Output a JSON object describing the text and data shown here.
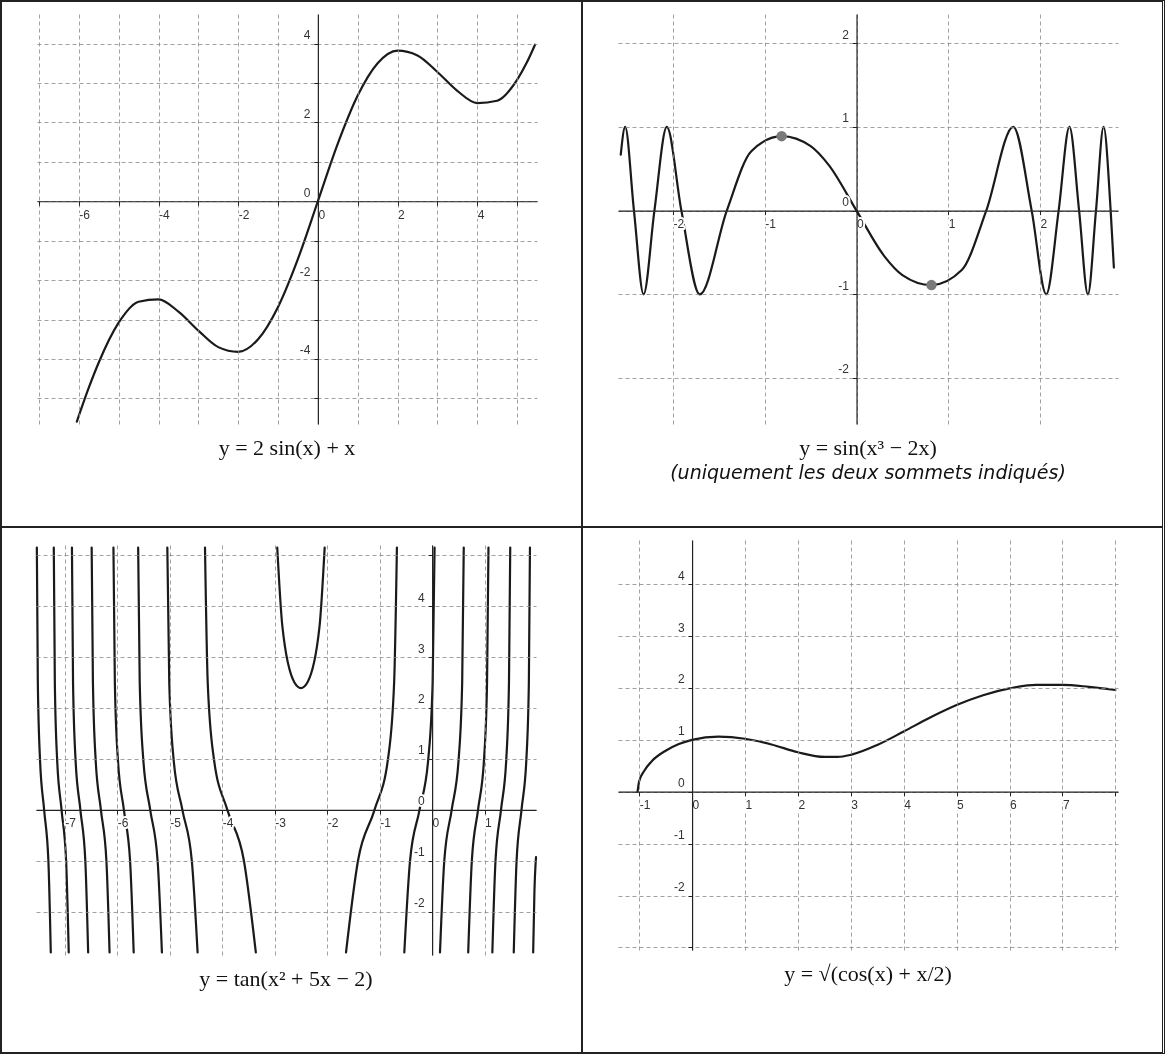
{
  "chart_data": [
    {
      "type": "line",
      "title": "y = 2 sin(x) + x",
      "grid": true,
      "xlim": [
        -7.05,
        5.5
      ],
      "ylim": [
        -5.65,
        4.75
      ],
      "xticks": [
        {
          "value": -7,
          "label": null
        },
        -6,
        {
          "value": -5,
          "label": null
        },
        -4,
        {
          "value": -3,
          "label": null
        },
        -2,
        {
          "value": -1,
          "label": null
        },
        0,
        {
          "value": 1,
          "label": null
        },
        2,
        {
          "value": 3,
          "label": null
        },
        4,
        {
          "value": 5,
          "label": null
        }
      ],
      "yticks": [
        {
          "value": -5,
          "label": null
        },
        -4,
        {
          "value": -3,
          "label": null
        },
        -2,
        {
          "value": -1,
          "label": null
        },
        0,
        {
          "value": 1,
          "label": null
        },
        2,
        {
          "value": 3,
          "label": null
        },
        4
      ],
      "series": [
        {
          "color": "#1a1a1a",
          "x": [
            -6.05,
            -5.75,
            -5.5,
            -5,
            -4.5,
            -4,
            -3.5,
            -3,
            -2.5,
            -2,
            -1.5,
            -1,
            -0.5,
            0,
            0.5,
            1,
            1.5,
            2,
            2.5,
            3,
            3.5,
            4,
            4.5,
            5,
            5.25,
            5.45
          ],
          "values": [
            -5.59,
            -4.73,
            -4.09,
            -3.08,
            -2.55,
            -2.49,
            -2.8,
            -3.28,
            -3.7,
            -3.82,
            -3.5,
            -2.68,
            -1.46,
            0,
            1.46,
            2.68,
            3.5,
            3.82,
            3.7,
            3.28,
            2.8,
            2.49,
            2.55,
            3.08,
            3.53,
            3.97
          ]
        }
      ]
    },
    {
      "type": "line",
      "title": "y = sin(x³ − 2x)",
      "subtitle": "(uniquement les deux sommets indiqués)",
      "grid": true,
      "xlim": [
        -2.6,
        2.85
      ],
      "ylim": [
        -2.55,
        2.35
      ],
      "xticks": [
        -2,
        -1,
        0,
        1,
        2
      ],
      "yticks": [
        -2,
        -1,
        0,
        1,
        2
      ],
      "series": [
        {
          "type": "line",
          "color": "#1a1a1a",
          "x": [
            -2.57,
            -2.522,
            -2.426,
            -2.321,
            -2.203,
            -2.068,
            -1.909,
            -1.709,
            -1.414,
            -1.147,
            -0.8165,
            -0.5,
            -0.3,
            0,
            0.3,
            0.5,
            0.8165,
            1.147,
            1.414,
            1.709,
            1.909,
            2.068,
            2.203,
            2.321,
            2.426,
            2.522,
            2.61,
            2.693,
            2.77,
            2.805
          ],
          "values": [
            0.67,
            1,
            0,
            -1,
            0,
            1,
            0,
            -1,
            0,
            0.71,
            0.89,
            0.77,
            0.54,
            0,
            -0.54,
            -0.77,
            -0.89,
            -0.71,
            0,
            1,
            0,
            -1,
            0,
            1,
            0,
            -1,
            0,
            1,
            0,
            -0.68
          ]
        },
        {
          "type": "scatter",
          "marker": "circle",
          "color": "#7a7a7a",
          "x": [
            -0.8165,
            0.8165
          ],
          "values": [
            0.89,
            -0.89
          ]
        }
      ]
    },
    {
      "type": "line",
      "title": "y = tan(x² + 5x − 2)",
      "grid": true,
      "xlim": [
        -7.55,
        1.98
      ],
      "ylim": [
        -2.85,
        5.2
      ],
      "xticks": [
        -7,
        -6,
        -5,
        -4,
        -3,
        -2,
        -1,
        0,
        1
      ],
      "yticks": [
        -2,
        -1,
        0,
        1,
        2,
        3,
        4,
        {
          "value": 5,
          "label": null
        }
      ],
      "series": [
        {
          "color": "#1a1a1a",
          "x": [
            -7.268,
            -7.314,
            -7.395,
            -7.474,
            -7.515,
            -7.534
          ],
          "values": [
            -2.8,
            -1,
            0,
            1,
            2.5,
            5.15
          ]
        },
        {
          "color": "#1a1a1a",
          "x": [
            -6.926,
            -6.976,
            -7.063,
            -7.148,
            -7.191,
            -7.211
          ],
          "values": [
            -2.8,
            -1,
            0,
            1,
            2.5,
            5.15
          ]
        },
        {
          "color": "#1a1a1a",
          "x": [
            -6.556,
            -6.61,
            -6.704,
            -6.797,
            -6.844,
            -6.865
          ],
          "values": [
            -2.8,
            -1,
            0,
            1,
            2.5,
            5.15
          ]
        },
        {
          "color": "#1a1a1a",
          "x": [
            -6.148,
            -6.208,
            -6.313,
            -6.414,
            -6.465,
            -6.489
          ],
          "values": [
            -2.8,
            -1,
            0,
            1,
            2.5,
            5.15
          ]
        },
        {
          "color": "#1a1a1a",
          "x": [
            -5.688,
            -5.757,
            -5.875,
            -5.99,
            -6.047,
            -6.074
          ],
          "values": [
            -2.8,
            -1,
            0,
            1,
            2.5,
            5.15
          ]
        },
        {
          "color": "#1a1a1a",
          "x": [
            -5.15,
            -5.232,
            -5.373,
            -5.506,
            -5.573,
            -5.603
          ],
          "values": [
            -2.8,
            -1,
            0,
            1,
            2.5,
            5.15
          ]
        },
        {
          "color": "#1a1a1a",
          "x": [
            -4.47,
            -4.58,
            -4.76,
            -4.928,
            -5.01,
            -5.047
          ],
          "values": [
            -2.8,
            -1,
            0,
            1,
            2.5,
            5.15
          ]
        },
        {
          "color": "#1a1a1a",
          "x": [
            -3.36,
            -3.587,
            -3.903,
            -4.159,
            -4.277,
            -4.329
          ],
          "values": [
            -2.8,
            -1,
            0,
            1,
            2.5,
            5.15
          ]
        },
        {
          "color": "#1a1a1a",
          "x": [
            -2.952,
            -2.854,
            -2.624,
            -2.5,
            -2.377,
            -2.146,
            -2.048
          ],
          "values": [
            5.15,
            3.6,
            2.5,
            2.39,
            2.5,
            3.6,
            5.15
          ]
        },
        {
          "color": "#1a1a1a",
          "x": [
            -1.641,
            -1.413,
            -1.098,
            -0.841,
            -0.724,
            -0.671
          ],
          "values": [
            -2.8,
            -1,
            0,
            1,
            2.5,
            5.15
          ]
        },
        {
          "color": "#1a1a1a",
          "x": [
            -0.53,
            -0.421,
            -0.24,
            -0.073,
            0.01,
            0.047
          ],
          "values": [
            -2.8,
            -1,
            0,
            1,
            2.5,
            5.15
          ]
        },
        {
          "color": "#1a1a1a",
          "x": [
            0.15,
            0.232,
            0.373,
            0.506,
            0.573,
            0.603
          ],
          "values": [
            -2.8,
            -1,
            0,
            1,
            2.5,
            5.15
          ]
        },
        {
          "color": "#1a1a1a",
          "x": [
            0.688,
            0.757,
            0.875,
            0.99,
            1.047,
            1.074
          ],
          "values": [
            -2.8,
            -1,
            0,
            1,
            2.5,
            5.15
          ]
        },
        {
          "color": "#1a1a1a",
          "x": [
            1.148,
            1.208,
            1.313,
            1.414,
            1.465,
            1.489
          ],
          "values": [
            -2.8,
            -1,
            0,
            1,
            2.5,
            5.15
          ]
        },
        {
          "color": "#1a1a1a",
          "x": [
            1.556,
            1.61,
            1.704,
            1.797,
            1.844,
            1.865
          ],
          "values": [
            -2.8,
            -1,
            0,
            1,
            2.5,
            5.15
          ]
        },
        {
          "color": "#1a1a1a",
          "x": [
            1.926,
            1.95,
            1.98
          ],
          "values": [
            -2.8,
            -1.61,
            -0.93
          ]
        }
      ]
    },
    {
      "type": "line",
      "title": "y = √(cos(x) + x/2)",
      "grid": true,
      "xlim": [
        -1.4,
        8.05
      ],
      "ylim": [
        -3.05,
        4.85
      ],
      "xticks": [
        -1,
        0,
        1,
        2,
        3,
        4,
        5,
        6,
        7,
        {
          "value": 8,
          "label": null
        }
      ],
      "yticks": [
        {
          "value": -3,
          "label": null
        },
        -2,
        -1,
        0,
        1,
        2,
        3,
        4
      ],
      "series": [
        {
          "color": "#1a1a1a",
          "x": [
            -1.03,
            -1,
            -0.9,
            -0.75,
            -0.5,
            -0.25,
            0,
            0.5,
            1,
            1.5,
            2,
            2.5,
            2.75,
            3,
            3.5,
            4,
            4.5,
            5,
            5.5,
            6,
            6.5,
            7,
            7.5,
            8
          ],
          "values": [
            0,
            0.2,
            0.41,
            0.6,
            0.79,
            0.92,
            1,
            1.06,
            1.02,
            0.91,
            0.76,
            0.67,
            0.67,
            0.71,
            0.9,
            1.16,
            1.43,
            1.67,
            1.86,
            1.99,
            2.06,
            2.06,
            2.02,
            1.96
          ]
        }
      ]
    }
  ]
}
